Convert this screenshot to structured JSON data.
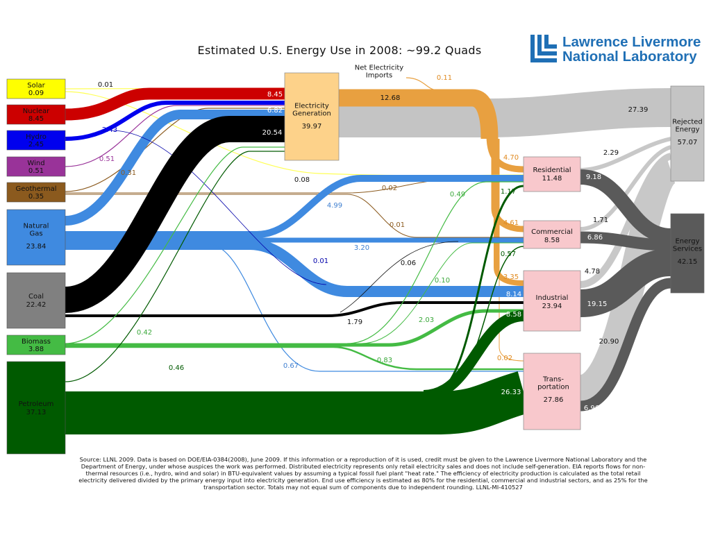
{
  "title": "Estimated U.S. Energy Use in 2008: ~99.2 Quads",
  "logo": {
    "line1": "Lawrence Livermore",
    "line2": "National Laboratory"
  },
  "colors": {
    "solar": "#ffff00",
    "nuclear": "#cc0000",
    "hydro": "#0000ee",
    "wind": "#993399",
    "geothermal": "#8b5a1e",
    "natural_gas": "#3f8ae0",
    "coal": "#000000",
    "biomass": "#44bb44",
    "petroleum": "#005a00",
    "electricity": "#e8a040",
    "rejected": "#c4c4c4",
    "services": "#5a5a5a",
    "sector": "#f8c8cc",
    "generation": "#fdd28a"
  },
  "sources": [
    {
      "name": "Solar",
      "value": "0.09",
      "text_color": "#111111"
    },
    {
      "name": "Nuclear",
      "value": "8.45",
      "text_color": "#111111"
    },
    {
      "name": "Hydro",
      "value": "2.45",
      "text_color": "#111111"
    },
    {
      "name": "Wind",
      "value": "0.51",
      "text_color": "#111111"
    },
    {
      "name": "Geothermal",
      "value": "0.35",
      "text_color": "#111111"
    },
    {
      "name": "Natural\nGas",
      "value": "23.84",
      "text_color": "#111111"
    },
    {
      "name": "Coal",
      "value": "22.42",
      "text_color": "#111111"
    },
    {
      "name": "Biomass",
      "value": "3.88",
      "text_color": "#111111"
    },
    {
      "name": "Petroleum",
      "value": "37.13",
      "text_color": "#111111"
    }
  ],
  "generation": {
    "name": "Electricity\nGeneration",
    "value": "39.97"
  },
  "imports": {
    "name": "Net Electricity\nImports",
    "value": "0.11"
  },
  "sectors": [
    {
      "name": "Residential",
      "value": "11.48"
    },
    {
      "name": "Commercial",
      "value": "8.58"
    },
    {
      "name": "Industrial",
      "value": "23.94"
    },
    {
      "name": "Trans-\nportation",
      "value": "27.86"
    }
  ],
  "outputs": [
    {
      "name": "Rejected\nEnergy",
      "value": "57.07"
    },
    {
      "name": "Energy\nServices",
      "value": "42.15"
    }
  ],
  "flow_labels": [
    {
      "text": "0.01",
      "color": "#111111"
    },
    {
      "text": "8.45",
      "color": "#ffffff"
    },
    {
      "text": "6.82",
      "color": "#ffffff"
    },
    {
      "text": "20.54",
      "color": "#ffffff"
    },
    {
      "text": "2.43",
      "color": "#0000cc"
    },
    {
      "text": "0.51",
      "color": "#993399"
    },
    {
      "text": "0.31",
      "color": "#8b5a1e"
    },
    {
      "text": "0.08",
      "color": "#111111"
    },
    {
      "text": "12.68",
      "color": "#111111"
    },
    {
      "text": "4.70",
      "color": "#e08a20"
    },
    {
      "text": "4.61",
      "color": "#e08a20"
    },
    {
      "text": "3.35",
      "color": "#e08a20"
    },
    {
      "text": "0.02",
      "color": "#e08a20"
    },
    {
      "text": "0.02",
      "color": "#8b5a1e"
    },
    {
      "text": "0.01",
      "color": "#8b5a1e"
    },
    {
      "text": "4.99",
      "color": "#3f7fd0"
    },
    {
      "text": "3.20",
      "color": "#3f7fd0"
    },
    {
      "text": "0.01",
      "color": "#0000aa"
    },
    {
      "text": "0.06",
      "color": "#111111"
    },
    {
      "text": "1.79",
      "color": "#111111"
    },
    {
      "text": "0.49",
      "color": "#3aa83a"
    },
    {
      "text": "0.10",
      "color": "#3aa83a"
    },
    {
      "text": "2.03",
      "color": "#3aa83a"
    },
    {
      "text": "0.83",
      "color": "#3aa83a"
    },
    {
      "text": "0.42",
      "color": "#3aa83a"
    },
    {
      "text": "0.67",
      "color": "#3f7fd0"
    },
    {
      "text": "0.46",
      "color": "#005a00"
    },
    {
      "text": "1.17",
      "color": "#005a00"
    },
    {
      "text": "0.57",
      "color": "#005a00"
    },
    {
      "text": "8.14",
      "color": "#ffffff"
    },
    {
      "text": "8.58",
      "color": "#ffffff"
    },
    {
      "text": "26.33",
      "color": "#ffffff"
    },
    {
      "text": "27.39",
      "color": "#111111"
    },
    {
      "text": "2.29",
      "color": "#111111"
    },
    {
      "text": "1.71",
      "color": "#111111"
    },
    {
      "text": "4.78",
      "color": "#111111"
    },
    {
      "text": "20.90",
      "color": "#111111"
    },
    {
      "text": "9.18",
      "color": "#ffffff"
    },
    {
      "text": "6.86",
      "color": "#ffffff"
    },
    {
      "text": "19.15",
      "color": "#ffffff"
    },
    {
      "text": "6.96",
      "color": "#ffffff"
    }
  ],
  "footer": "Source: LLNL 2009. Data is based on DOE/EIA-0384(2008), June 2009. If this information or a reproduction of it is used, credit must be given to the Lawrence Livermore National Laboratory and the Department of Energy, under whose auspices the work was performed. Distributed electricity represents only retail electricity sales and does not include self-generation. EIA reports flows for non-thermal resources (i.e., hydro, wind and solar) in BTU-equivalent values by assuming a typical fossil fuel plant \"heat rate.\" The efficiency of electricity production is calculated as the total retail electricity delivered divided by the primary energy input into electricity generation. End use efficiency is estimated as 80% for the residential, commercial and industrial sectors, and as 25% for the transportation sector. Totals may not equal sum of components due to independent rounding. LLNL-MI-410527"
}
